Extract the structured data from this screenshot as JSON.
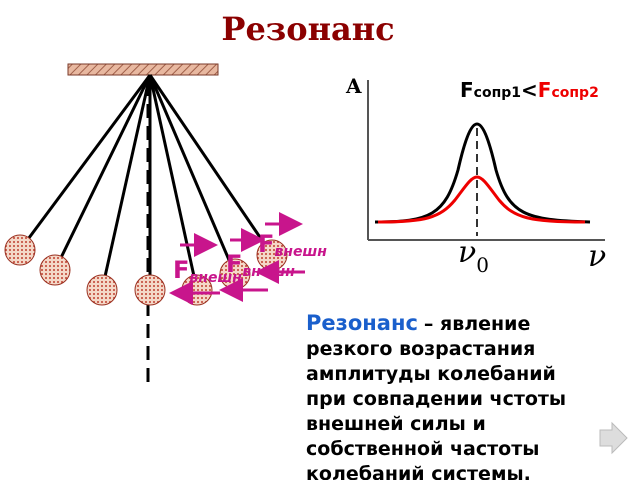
{
  "title": "Резонанс",
  "graph": {
    "y_axis": "A",
    "legend": {
      "f1": "F",
      "sub1": "сопр1",
      "op": "<",
      "f2": "F",
      "sub2": "сопр2"
    },
    "x0": "ν",
    "x0_sub": "0",
    "x_axis": "ν"
  },
  "forces": [
    {
      "f": "F",
      "sub": "внешн"
    },
    {
      "f": "F",
      "sub": "внешн"
    },
    {
      "f": "F",
      "sub": "внешн"
    }
  ],
  "definition": {
    "term": "Резонанс",
    "lines": [
      "– явление",
      "резкого возрастания",
      "амплитуды колебаний",
      "при совпадении чстоты",
      "внешней силы и",
      "собственной частоты",
      "колебаний системы."
    ]
  }
}
